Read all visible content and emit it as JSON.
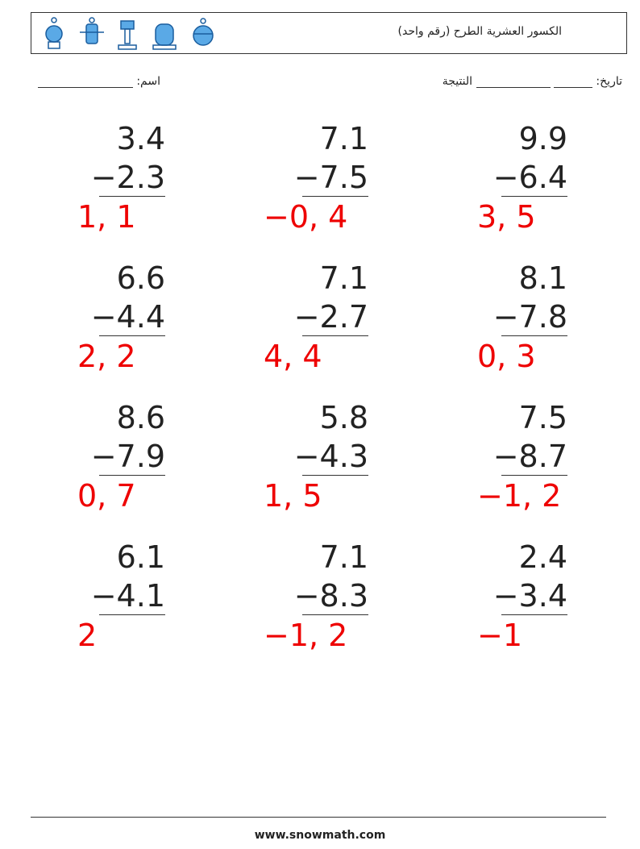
{
  "header": {
    "title": "الكسور العشرية الطرح (رقم واحد)"
  },
  "fields": {
    "name": "اسم:",
    "date": "تاريخ:",
    "score": "النتيجة"
  },
  "problems": [
    [
      {
        "top": "3.4",
        "bottom": "−2.3",
        "answer": "1, 1"
      },
      {
        "top": "7.1",
        "bottom": "−7.5",
        "answer": "−0, 4"
      },
      {
        "top": "9.9",
        "bottom": "−6.4",
        "answer": "3, 5"
      }
    ],
    [
      {
        "top": "6.6",
        "bottom": "−4.4",
        "answer": "2, 2"
      },
      {
        "top": "7.1",
        "bottom": "−2.7",
        "answer": "4, 4"
      },
      {
        "top": "8.1",
        "bottom": "−7.8",
        "answer": "0, 3"
      }
    ],
    [
      {
        "top": "8.6",
        "bottom": "−7.9",
        "answer": "0, 7"
      },
      {
        "top": "5.8",
        "bottom": "−4.3",
        "answer": "1, 5"
      },
      {
        "top": "7.5",
        "bottom": "−8.7",
        "answer": "−1, 2"
      }
    ],
    [
      {
        "top": "6.1",
        "bottom": "−4.1",
        "answer": "2"
      },
      {
        "top": "7.1",
        "bottom": "−8.3",
        "answer": "−1, 2"
      },
      {
        "top": "2.4",
        "bottom": "−3.4",
        "answer": "−1"
      }
    ]
  ],
  "footer": {
    "url": "www.snowmath.com"
  }
}
